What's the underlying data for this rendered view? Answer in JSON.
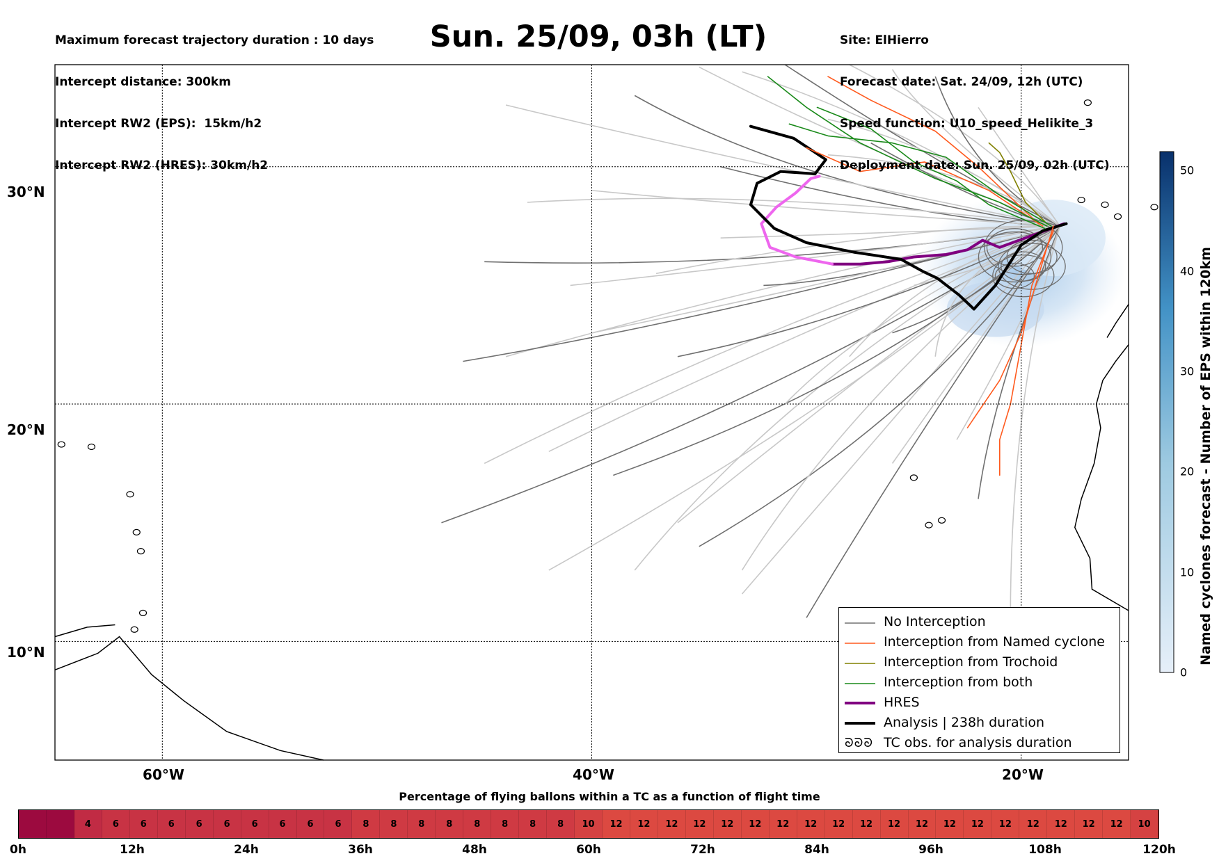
{
  "header": {
    "left": [
      "Maximum forecast trajectory duration : 10 days",
      "Intercept distance: 300km",
      "Intercept RW2 (EPS):  15km/h2",
      "Intercept RW2 (HRES): 30km/h2"
    ],
    "title": "Sun. 25/09, 03h (LT)",
    "right": [
      "Site: ElHierro",
      "Forecast date: Sat. 24/09, 12h (UTC)",
      "Speed function: U10_speed_Helikite_3",
      "Deployment date: Sun. 25/09, 02h (UTC)"
    ]
  },
  "map": {
    "lon_range": [
      -65,
      -15
    ],
    "lat_range": [
      5,
      34.3
    ],
    "lat_labels": [
      "30°N",
      "20°N",
      "10°N"
    ],
    "lon_labels": [
      "60°W",
      "40°W",
      "20°W"
    ]
  },
  "colorbar": {
    "label": "Named cyclones forecast - Number of EPS within 120km",
    "range": [
      0,
      52
    ],
    "ticks": [
      "0",
      "10",
      "20",
      "30",
      "40",
      "50"
    ],
    "color_low": "#e6eff9",
    "color_high": "#08306b"
  },
  "legend": {
    "items": [
      {
        "label": "No Interception",
        "color": "#707070",
        "width": 1.5
      },
      {
        "label": "Interception from Named cyclone",
        "color": "#ff5a1e",
        "width": 1.5
      },
      {
        "label": "Interception from Trochoid",
        "color": "#808000",
        "width": 1.5
      },
      {
        "label": "Interception from both",
        "color": "#1a8a1a",
        "width": 1.5
      },
      {
        "label": "HRES",
        "color": "#800080",
        "width": 4
      },
      {
        "label": "Analysis | 238h duration",
        "color": "#000000",
        "width": 4
      },
      {
        "label": "TC obs. for analysis duration",
        "color": "#000000",
        "marker": "ᘐᘐᘐ"
      }
    ]
  },
  "percentage_bar": {
    "title": "Percentage of flying ballons within a TC as a function of flight time",
    "values": [
      "",
      "",
      "4",
      "6",
      "6",
      "6",
      "6",
      "6",
      "6",
      "6",
      "6",
      "6",
      "8",
      "8",
      "8",
      "8",
      "8",
      "8",
      "8",
      "8",
      "10",
      "12",
      "12",
      "12",
      "12",
      "12",
      "12",
      "12",
      "12",
      "12",
      "12",
      "12",
      "12",
      "12",
      "12",
      "12",
      "12",
      "12",
      "12",
      "12",
      "10"
    ],
    "ticks": [
      "0h",
      "12h",
      "24h",
      "36h",
      "48h",
      "60h",
      "72h",
      "84h",
      "96h",
      "108h",
      "120h"
    ]
  },
  "chart_data": {
    "type": "line",
    "title": "Sun. 25/09, 03h (LT)",
    "x_axis": "longitude",
    "y_axis": "latitude",
    "site_location": [
      -18.0,
      27.6
    ],
    "series": [
      {
        "name": "HRES",
        "color": "#800080",
        "points": [
          [
            -18.0,
            27.6
          ],
          [
            -19.5,
            27.1
          ],
          [
            -21.0,
            26.6
          ],
          [
            -21.8,
            26.9
          ],
          [
            -22.5,
            26.5
          ],
          [
            -23.5,
            26.3
          ],
          [
            -25.0,
            26.2
          ],
          [
            -26.2,
            26.0
          ],
          [
            -27.5,
            25.9
          ],
          [
            -28.8,
            25.9
          ]
        ]
      },
      {
        "name": "HRES",
        "color": "#ee66ee",
        "points": [
          [
            -28.8,
            25.9
          ],
          [
            -30.5,
            26.2
          ],
          [
            -31.7,
            26.6
          ],
          [
            -32.1,
            27.6
          ],
          [
            -31.4,
            28.3
          ],
          [
            -30.5,
            28.9
          ],
          [
            -29.8,
            29.5
          ],
          [
            -29.4,
            29.6
          ]
        ]
      },
      {
        "name": "Analysis | 238h duration",
        "color": "#000000",
        "points": [
          [
            -17.9,
            27.6
          ],
          [
            -19.0,
            27.3
          ],
          [
            -20.0,
            26.7
          ],
          [
            -21.2,
            25.0
          ],
          [
            -22.2,
            24.0
          ],
          [
            -22.9,
            24.6
          ],
          [
            -23.9,
            25.3
          ],
          [
            -24.6,
            25.6
          ],
          [
            -25.6,
            26.1
          ],
          [
            -27.8,
            26.4
          ],
          [
            -30.0,
            26.8
          ],
          [
            -31.5,
            27.4
          ],
          [
            -32.6,
            28.4
          ],
          [
            -32.3,
            29.3
          ],
          [
            -31.2,
            29.8
          ],
          [
            -29.6,
            29.7
          ],
          [
            -29.1,
            30.3
          ],
          [
            -30.6,
            31.2
          ],
          [
            -32.6,
            31.7
          ]
        ]
      },
      {
        "name": "Interception from Named cyclone",
        "color": "#ff5a1e",
        "points": [
          [
            -18.5,
            27.5
          ],
          [
            -19.0,
            26.0
          ],
          [
            -19.5,
            24.5
          ],
          [
            -20.0,
            23.0
          ],
          [
            -21.0,
            21.0
          ],
          [
            -22.5,
            19.0
          ]
        ]
      },
      {
        "name": "Interception from Named cyclone",
        "color": "#ff5a1e",
        "points": [
          [
            -18.5,
            27.3
          ],
          [
            -19.5,
            25.0
          ],
          [
            -20.0,
            22.5
          ],
          [
            -20.5,
            20.0
          ],
          [
            -21.0,
            18.5
          ],
          [
            -21.0,
            17.0
          ]
        ]
      },
      {
        "name": "Interception from Named cyclone",
        "color": "#ff5a1e",
        "points": [
          [
            -19.0,
            27.5
          ],
          [
            -21.5,
            29.0
          ],
          [
            -24.5,
            30.2
          ],
          [
            -27.5,
            29.8
          ],
          [
            -30.0,
            30.8
          ]
        ]
      },
      {
        "name": "Interception from Named cyclone",
        "color": "#ff5a1e",
        "points": [
          [
            -19.2,
            27.6
          ],
          [
            -22.0,
            30.0
          ],
          [
            -24.0,
            31.5
          ],
          [
            -27.0,
            32.8
          ],
          [
            -29.0,
            33.8
          ]
        ]
      },
      {
        "name": "Interception from Trochoid",
        "color": "#808000",
        "points": [
          [
            -18.8,
            27.6
          ],
          [
            -19.8,
            28.5
          ],
          [
            -20.5,
            29.8
          ],
          [
            -21.0,
            30.6
          ],
          [
            -21.5,
            31.0
          ]
        ]
      },
      {
        "name": "Interception from both",
        "color": "#1a8a1a",
        "points": [
          [
            -18.8,
            27.5
          ],
          [
            -21.0,
            28.5
          ],
          [
            -24.0,
            29.5
          ],
          [
            -27.5,
            31.0
          ],
          [
            -30.0,
            32.5
          ],
          [
            -31.8,
            33.8
          ]
        ]
      },
      {
        "name": "Interception from both",
        "color": "#1a8a1a",
        "points": [
          [
            -18.6,
            27.5
          ],
          [
            -21.0,
            28.8
          ],
          [
            -23.5,
            30.4
          ],
          [
            -26.0,
            31.0
          ],
          [
            -29.0,
            31.3
          ],
          [
            -30.8,
            31.8
          ]
        ]
      },
      {
        "name": "Interception from both",
        "color": "#1a8a1a",
        "points": [
          [
            -18.9,
            27.4
          ],
          [
            -21.5,
            28.4
          ],
          [
            -23.0,
            29.4
          ],
          [
            -25.0,
            30.2
          ],
          [
            -27.0,
            31.6
          ],
          [
            -29.5,
            32.5
          ]
        ]
      }
    ]
  }
}
